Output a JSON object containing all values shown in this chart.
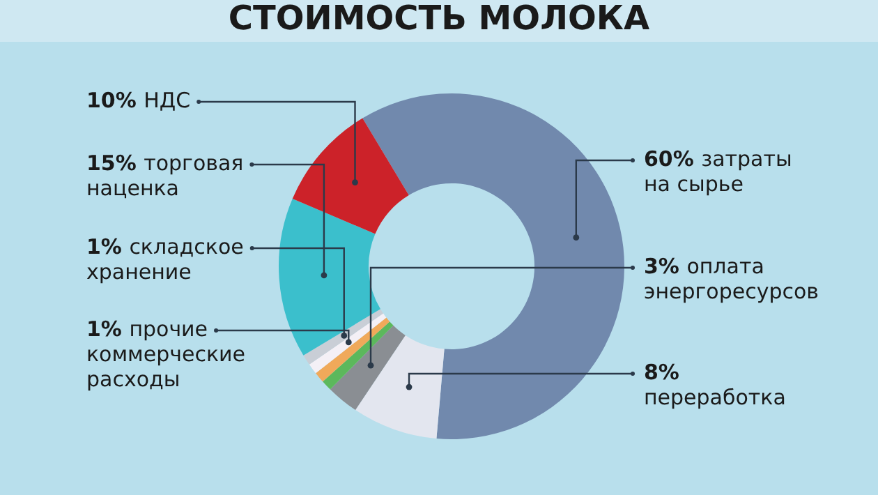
{
  "chart_data": {
    "type": "donut",
    "title": "СТОИМОСТЬ МОЛОКА",
    "categories": [
      "затраты на сырье",
      "переработка",
      "оплата энергоресурсов",
      null,
      null,
      "прочие коммерческие расходы",
      "складское хранение",
      "торговая наценка",
      "НДС"
    ],
    "values": [
      60,
      8,
      3,
      1,
      1,
      1,
      1,
      15,
      10
    ],
    "value_labels": [
      "60%",
      "8%",
      "3%",
      null,
      null,
      "1%",
      "1%",
      "15%",
      "10%"
    ],
    "colors": [
      "#7189ad",
      "#e3e6ef",
      "#8a8e93",
      "#5cb85c",
      "#f0a95a",
      "#f4f0f6",
      "#c9ced6",
      "#3bbfcc",
      "#cc2229"
    ]
  }
}
